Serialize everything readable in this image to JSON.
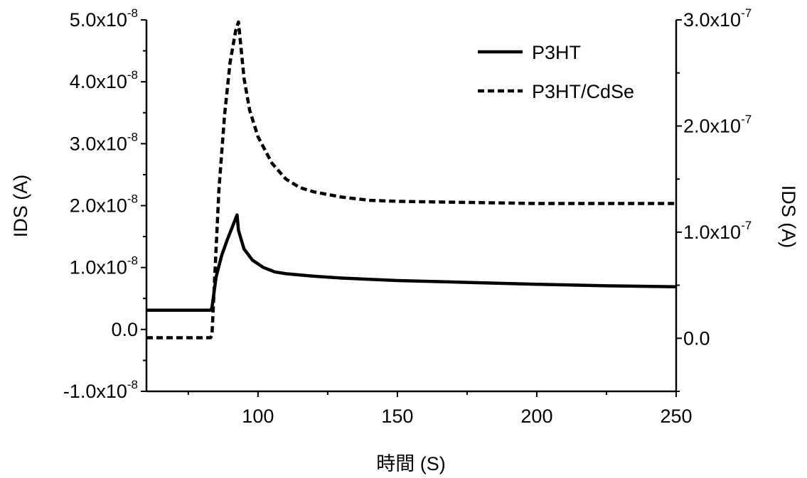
{
  "chart_data": {
    "type": "line",
    "xlabel": "時間 (S)",
    "ylabel_left": "IDS (A)",
    "ylabel_right": "IDS (A)",
    "xlim": [
      60,
      250
    ],
    "ylim_left": [
      -1e-08,
      5e-08
    ],
    "ylim_right": [
      -5e-08,
      3e-07
    ],
    "x_ticks": [
      100,
      150,
      200,
      250
    ],
    "x_tick_labels": [
      "100",
      "150",
      "200",
      "250"
    ],
    "y_left_ticks": [
      {
        "value": -1e-08,
        "mantissa": "-1.0x10",
        "exponent": "-8"
      },
      {
        "value": 0.0,
        "mantissa": "0.0",
        "exponent": ""
      },
      {
        "value": 1e-08,
        "mantissa": "1.0x10",
        "exponent": "-8"
      },
      {
        "value": 2e-08,
        "mantissa": "2.0x10",
        "exponent": "-8"
      },
      {
        "value": 3e-08,
        "mantissa": "3.0x10",
        "exponent": "-8"
      },
      {
        "value": 4e-08,
        "mantissa": "4.0x10",
        "exponent": "-8"
      },
      {
        "value": 5e-08,
        "mantissa": "5.0x10",
        "exponent": "-8"
      }
    ],
    "y_right_ticks": [
      {
        "value": 0.0,
        "mantissa": "0.0",
        "exponent": ""
      },
      {
        "value": 1e-07,
        "mantissa": "1.0x10",
        "exponent": "-7"
      },
      {
        "value": 2e-07,
        "mantissa": "2.0x10",
        "exponent": "-7"
      },
      {
        "value": 3e-07,
        "mantissa": "3.0x10",
        "exponent": "-7"
      }
    ],
    "legend_position": "top-right",
    "series": [
      {
        "name": "P3HT",
        "axis": "left",
        "style": "solid",
        "color": "#000000",
        "x": [
          60,
          83,
          83.5,
          85,
          87,
          89,
          91,
          92.5,
          93,
          95,
          98,
          102,
          106,
          110,
          120,
          130,
          150,
          175,
          200,
          225,
          250
        ],
        "y": [
          3.1e-09,
          3.1e-09,
          3.5e-09,
          8.5e-09,
          1.2e-08,
          1.45e-08,
          1.68e-08,
          1.85e-08,
          1.6e-08,
          1.3e-08,
          1.12e-08,
          1e-08,
          9.3e-09,
          9e-09,
          8.6e-09,
          8.3e-09,
          7.9e-09,
          7.6e-09,
          7.3e-09,
          7.05e-09,
          6.9e-09
        ]
      },
      {
        "name": "P3HT/CdSe",
        "axis": "right",
        "style": "dashed",
        "color": "#000000",
        "x": [
          60,
          83,
          83.5,
          86,
          88,
          90,
          92,
          93,
          95,
          97,
          100,
          105,
          110,
          115,
          120,
          130,
          140,
          150,
          175,
          200,
          250
        ],
        "y": [
          5e-10,
          5e-10,
          3e-09,
          1.4e-07,
          2.1e-07,
          2.6e-07,
          2.9e-07,
          2.98e-07,
          2.45e-07,
          2.15e-07,
          1.9e-07,
          1.65e-07,
          1.5e-07,
          1.42e-07,
          1.38e-07,
          1.33e-07,
          1.3e-07,
          1.29e-07,
          1.28e-07,
          1.27e-07,
          1.27e-07
        ]
      }
    ]
  }
}
